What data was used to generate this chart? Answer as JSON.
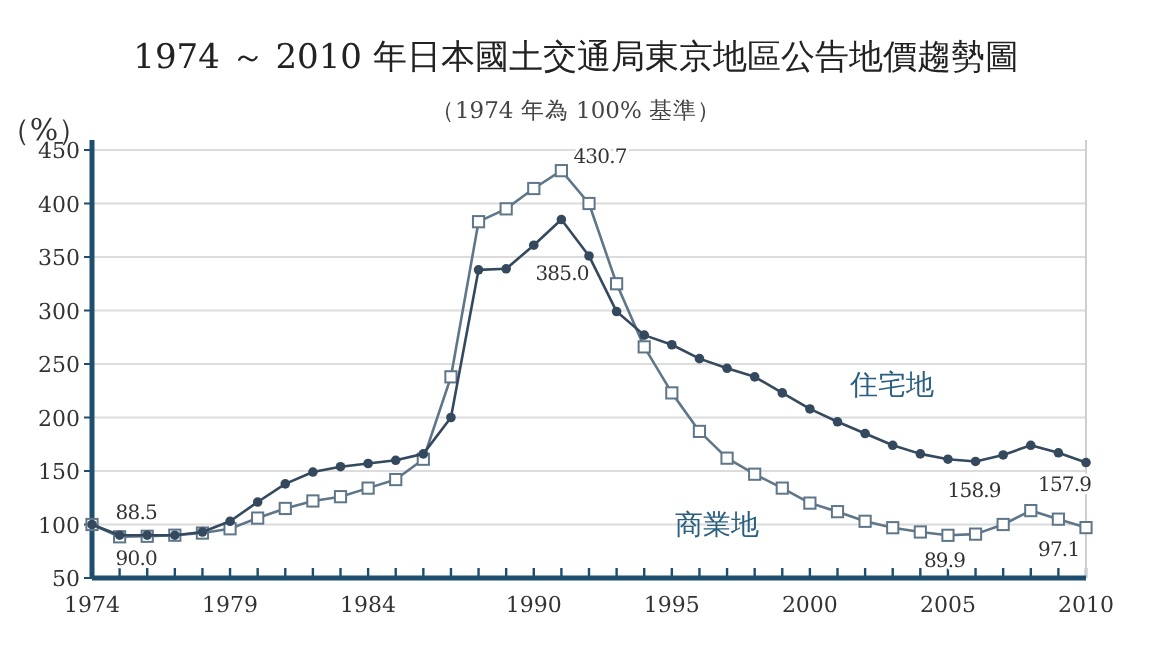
{
  "chart_data": {
    "type": "line",
    "title": "1974 ～ 2010 年日本國土交通局東京地區公告地價趨勢圖",
    "subtitle": "（1974 年為 100% 基準）",
    "ylabel": "（%）",
    "x": [
      1974,
      1975,
      1976,
      1977,
      1978,
      1979,
      1980,
      1981,
      1982,
      1983,
      1984,
      1985,
      1986,
      1987,
      1988,
      1989,
      1990,
      1991,
      1992,
      1993,
      1994,
      1995,
      1996,
      1997,
      1998,
      1999,
      2000,
      2001,
      2002,
      2003,
      2004,
      2005,
      2006,
      2007,
      2008,
      2009,
      2010
    ],
    "series": [
      {
        "name": "住宅地",
        "color": "#34495e",
        "marker": "circle",
        "values": [
          100,
          90.0,
          90,
          90,
          93,
          103,
          121,
          138,
          149,
          154,
          157,
          160,
          166,
          200,
          338,
          339,
          361,
          385.0,
          351,
          299,
          277,
          268,
          255,
          246,
          238,
          223,
          208,
          196,
          185,
          174,
          166,
          161,
          158.9,
          165,
          174,
          167,
          157.9
        ]
      },
      {
        "name": "商業地",
        "color": "#5f7689",
        "marker": "square",
        "values": [
          100,
          88.5,
          89,
          90,
          92,
          96,
          106,
          115,
          122,
          126,
          134,
          142,
          161,
          238,
          383,
          395,
          414,
          430.7,
          400,
          325,
          266,
          223,
          187,
          162,
          147,
          134,
          120,
          112,
          103,
          97,
          93,
          89.9,
          91,
          100,
          113,
          105,
          97.1
        ]
      }
    ],
    "xlim": [
      1974,
      2010
    ],
    "xticks": [
      1974,
      {
        "value": 1975,
        "label": null
      },
      {
        "value": 1976,
        "label": null
      },
      {
        "value": 1977,
        "label": null
      },
      {
        "value": 1978,
        "label": null
      },
      1979,
      {
        "value": 1980,
        "label": null
      },
      {
        "value": 1981,
        "label": null
      },
      {
        "value": 1982,
        "label": null
      },
      {
        "value": 1983,
        "label": null
      },
      1984,
      {
        "value": 1985,
        "label": null
      },
      {
        "value": 1986,
        "label": null
      },
      {
        "value": 1987,
        "label": null
      },
      {
        "value": 1988,
        "label": null
      },
      {
        "value": 1989,
        "label": null
      },
      1990,
      {
        "value": 1991,
        "label": null
      },
      {
        "value": 1992,
        "label": null
      },
      {
        "value": 1993,
        "label": null
      },
      {
        "value": 1994,
        "label": null
      },
      1995,
      {
        "value": 1996,
        "label": null
      },
      {
        "value": 1997,
        "label": null
      },
      {
        "value": 1998,
        "label": null
      },
      {
        "value": 1999,
        "label": null
      },
      2000,
      {
        "value": 2001,
        "label": null
      },
      {
        "value": 2002,
        "label": null
      },
      {
        "value": 2003,
        "label": null
      },
      {
        "value": 2004,
        "label": null
      },
      2005,
      {
        "value": 2006,
        "label": null
      },
      {
        "value": 2007,
        "label": null
      },
      {
        "value": 2008,
        "label": null
      },
      {
        "value": 2009,
        "label": null
      },
      2010
    ],
    "ylim": [
      50,
      450
    ],
    "yticks": [
      50,
      100,
      150,
      200,
      250,
      300,
      350,
      400,
      450
    ],
    "grid": "y",
    "legend": false,
    "annotations": [
      {
        "text": "88.5",
        "x": 1975,
        "y": 88.5
      },
      {
        "text": "90.0",
        "x": 1975,
        "y": 90.0
      },
      {
        "text": "430.7",
        "x": 1991,
        "y": 430.7
      },
      {
        "text": "385.0",
        "x": 1991,
        "y": 385.0
      },
      {
        "text": "158.9",
        "x": 2006,
        "y": 158.9
      },
      {
        "text": "157.9",
        "x": 2010,
        "y": 157.9
      },
      {
        "text": "89.9",
        "x": 2005,
        "y": 89.9
      },
      {
        "text": "97.1",
        "x": 2010,
        "y": 97.1
      }
    ]
  }
}
